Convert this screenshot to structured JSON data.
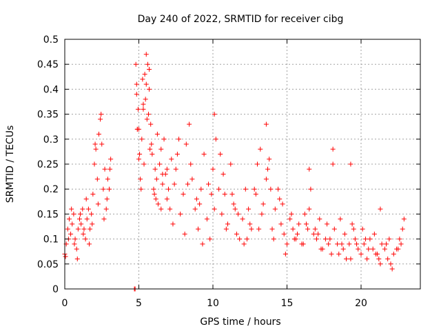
{
  "chart_data": {
    "type": "scatter",
    "title": "Day 240 of 2022, SRMTID for receiver cibg",
    "xlabel": "GPS time / hours",
    "ylabel": "SRMTID / TECUs",
    "xlim": [
      0,
      24
    ],
    "ylim": [
      0,
      0.5
    ],
    "xticks": [
      0,
      5,
      10,
      15,
      20
    ],
    "xtick_labels": [
      "0",
      "5",
      "10",
      "15",
      "20"
    ],
    "yticks": [
      0,
      0.05,
      0.1,
      0.15,
      0.2,
      0.25,
      0.3,
      0.35,
      0.4,
      0.45,
      0.5
    ],
    "ytick_labels": [
      "0",
      "0.05",
      "0.1",
      "0.15",
      "0.2",
      "0.25",
      "0.3",
      "0.35",
      "0.4",
      "0.45",
      "0.5"
    ],
    "grid": true,
    "marker": "plus",
    "color": "#ff0000",
    "series": [
      {
        "name": "SRMTID",
        "x": [
          0.0,
          0.1,
          0.2,
          0.3,
          0.4,
          0.5,
          0.6,
          0.7,
          0.8,
          0.9,
          1.0,
          1.1,
          1.2,
          1.3,
          1.4,
          1.5,
          1.6,
          1.7,
          1.8,
          1.9,
          2.0,
          2.1,
          2.2,
          2.3,
          2.4,
          2.5,
          2.6,
          2.7,
          2.8,
          2.9,
          3.0,
          3.1,
          0.05,
          0.25,
          0.45,
          0.65,
          0.85,
          1.05,
          1.25,
          1.45,
          1.65,
          1.85,
          2.05,
          2.25,
          2.45,
          2.65,
          2.85,
          3.05,
          4.7,
          4.75,
          4.8,
          4.85,
          4.9,
          4.95,
          5.0,
          5.1,
          5.2,
          5.3,
          5.4,
          5.5,
          5.6,
          5.7,
          5.8,
          5.9,
          6.0,
          6.1,
          6.2,
          6.3,
          6.4,
          6.5,
          6.6,
          6.7,
          6.8,
          6.9,
          7.0,
          7.2,
          7.4,
          7.6,
          7.8,
          8.0,
          8.2,
          8.4,
          8.6,
          8.8,
          9.0,
          9.2,
          9.4,
          9.6,
          9.8,
          10.0,
          10.2,
          10.4,
          10.6,
          10.8,
          11.0,
          11.2,
          11.4,
          11.6,
          11.8,
          12.0,
          12.2,
          12.4,
          12.6,
          12.8,
          13.0,
          13.2,
          13.4,
          13.6,
          13.8,
          14.0,
          14.2,
          14.4,
          14.6,
          14.8,
          15.0,
          15.2,
          15.4,
          15.6,
          15.8,
          16.0,
          16.2,
          16.4,
          16.6,
          16.8,
          17.0,
          17.2,
          17.4,
          17.6,
          17.8,
          18.0,
          18.2,
          18.4,
          18.6,
          18.8,
          19.0,
          19.2,
          19.4,
          19.6,
          19.8,
          20.0,
          20.2,
          20.4,
          20.6,
          20.8,
          21.0,
          21.2,
          21.4,
          21.6,
          21.8,
          22.0,
          22.2,
          22.4,
          22.6,
          22.8,
          4.85,
          5.05,
          5.25,
          5.45,
          5.65,
          5.85,
          6.05,
          6.25,
          6.5,
          6.9,
          7.3,
          7.7,
          8.1,
          8.5,
          8.9,
          9.3,
          9.7,
          10.1,
          10.5,
          10.9,
          11.3,
          11.7,
          12.1,
          12.5,
          12.9,
          13.3,
          13.7,
          14.1,
          14.5,
          14.9,
          15.3,
          15.7,
          16.1,
          16.5,
          16.9,
          17.3,
          17.7,
          18.1,
          18.5,
          18.9,
          19.3,
          19.7,
          20.1,
          20.5,
          20.9,
          21.3,
          21.7,
          22.1,
          22.5,
          22.9,
          4.9,
          5.15,
          5.35,
          5.55,
          5.75,
          6.15,
          6.6,
          7.1,
          7.5,
          8.3,
          9.1,
          9.9,
          10.7,
          11.5,
          12.3,
          13.1,
          13.9,
          14.7,
          15.5,
          16.3,
          17.1,
          17.9,
          18.7,
          19.5,
          20.3,
          21.1,
          21.9,
          22.7,
          5.0,
          5.3,
          5.5,
          5.7,
          10.1,
          13.6,
          16.5,
          18.1,
          19.3,
          21.3
        ],
        "y": [
          0.07,
          0.09,
          0.12,
          0.14,
          0.11,
          0.13,
          0.15,
          0.1,
          0.08,
          0.12,
          0.14,
          0.13,
          0.16,
          0.12,
          0.1,
          0.14,
          0.16,
          0.12,
          0.15,
          0.19,
          0.25,
          0.28,
          0.22,
          0.31,
          0.34,
          0.29,
          0.2,
          0.24,
          0.16,
          0.22,
          0.2,
          0.26,
          0.065,
          0.1,
          0.16,
          0.09,
          0.06,
          0.15,
          0.11,
          0.18,
          0.09,
          0.13,
          0.29,
          0.17,
          0.35,
          0.14,
          0.18,
          0.24,
          0.0,
          0.0,
          0.45,
          0.41,
          0.32,
          0.36,
          0.26,
          0.22,
          0.3,
          0.37,
          0.43,
          0.47,
          0.45,
          0.4,
          0.33,
          0.27,
          0.2,
          0.24,
          0.22,
          0.17,
          0.25,
          0.28,
          0.21,
          0.3,
          0.23,
          0.18,
          0.2,
          0.26,
          0.21,
          0.27,
          0.15,
          0.19,
          0.29,
          0.33,
          0.22,
          0.16,
          0.12,
          0.2,
          0.27,
          0.14,
          0.1,
          0.24,
          0.3,
          0.2,
          0.15,
          0.19,
          0.13,
          0.25,
          0.17,
          0.11,
          0.1,
          0.14,
          0.2,
          0.16,
          0.12,
          0.2,
          0.25,
          0.28,
          0.17,
          0.22,
          0.26,
          0.12,
          0.16,
          0.2,
          0.13,
          0.11,
          0.09,
          0.14,
          0.12,
          0.1,
          0.13,
          0.09,
          0.15,
          0.12,
          0.2,
          0.11,
          0.1,
          0.14,
          0.08,
          0.1,
          0.09,
          0.07,
          0.12,
          0.09,
          0.14,
          0.08,
          0.06,
          0.09,
          0.13,
          0.1,
          0.08,
          0.07,
          0.09,
          0.06,
          0.1,
          0.08,
          0.07,
          0.06,
          0.09,
          0.08,
          0.06,
          0.05,
          0.07,
          0.08,
          0.1,
          0.12,
          0.39,
          0.27,
          0.42,
          0.38,
          0.35,
          0.29,
          0.19,
          0.31,
          0.16,
          0.24,
          0.13,
          0.3,
          0.11,
          0.25,
          0.18,
          0.09,
          0.21,
          0.16,
          0.27,
          0.12,
          0.19,
          0.15,
          0.09,
          0.13,
          0.19,
          0.15,
          0.24,
          0.1,
          0.18,
          0.07,
          0.15,
          0.11,
          0.09,
          0.16,
          0.12,
          0.08,
          0.13,
          0.25,
          0.07,
          0.11,
          0.06,
          0.09,
          0.12,
          0.08,
          0.11,
          0.05,
          0.09,
          0.04,
          0.08,
          0.14,
          0.32,
          0.2,
          0.25,
          0.34,
          0.28,
          0.18,
          0.23,
          0.16,
          0.24,
          0.21,
          0.17,
          0.19,
          0.23,
          0.16,
          0.1,
          0.12,
          0.2,
          0.17,
          0.1,
          0.13,
          0.11,
          0.1,
          0.09,
          0.12,
          0.1,
          0.07,
          0.1,
          0.09,
          0.32,
          0.36,
          0.41,
          0.44,
          0.35,
          0.33,
          0.24,
          0.28,
          0.25,
          0.16
        ]
      }
    ]
  }
}
